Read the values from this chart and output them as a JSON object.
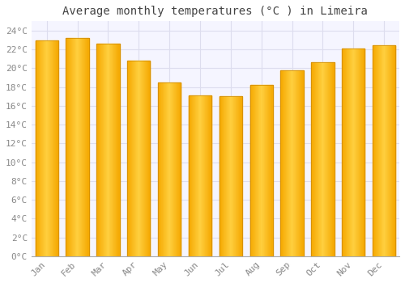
{
  "title": "Average monthly temperatures (°C ) in Limeira",
  "months": [
    "Jan",
    "Feb",
    "Mar",
    "Apr",
    "May",
    "Jun",
    "Jul",
    "Aug",
    "Sep",
    "Oct",
    "Nov",
    "Dec"
  ],
  "temperatures": [
    23.0,
    23.2,
    22.6,
    20.8,
    18.5,
    17.1,
    17.0,
    18.2,
    19.8,
    20.6,
    22.1,
    22.4
  ],
  "bar_color_center": "#FFD040",
  "bar_color_edge": "#F5A800",
  "background_color": "#FFFFFF",
  "plot_bg_color": "#F5F5FF",
  "grid_color": "#DDDDEE",
  "ylim": [
    0,
    25
  ],
  "ytick_step": 2,
  "title_fontsize": 10,
  "tick_fontsize": 8,
  "font_family": "monospace"
}
